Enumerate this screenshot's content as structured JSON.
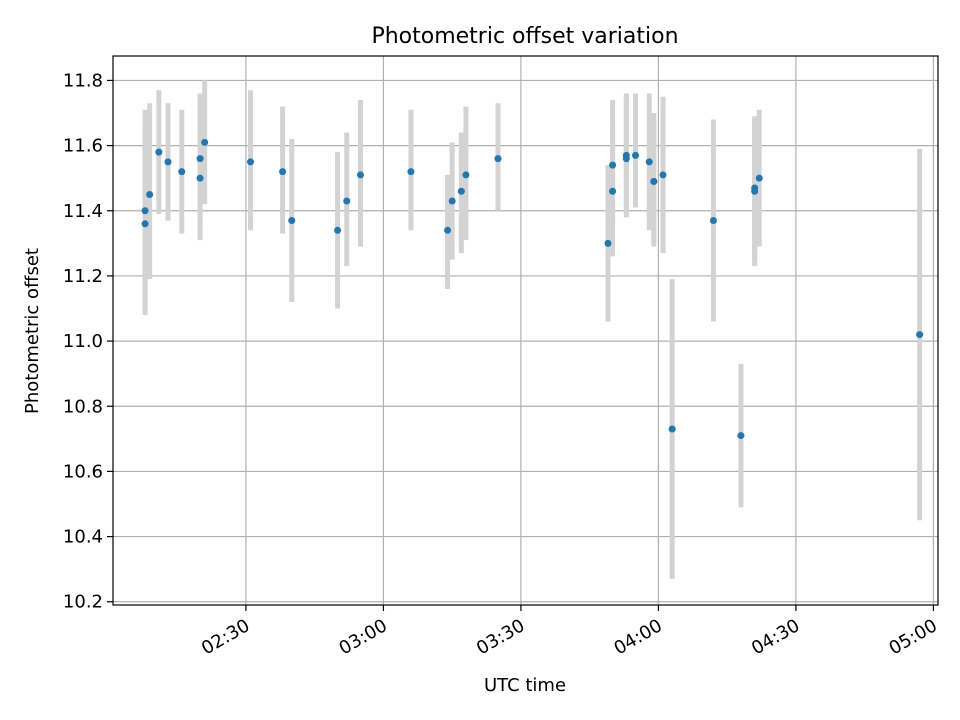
{
  "chart_data": {
    "type": "scatter",
    "title": "Photometric offset variation",
    "xlabel": "UTC time",
    "ylabel": "Photometric offset",
    "xlim": [
      "02:01",
      "05:01"
    ],
    "ylim": [
      10.19,
      11.875
    ],
    "xticks": [
      "02:30",
      "03:00",
      "03:30",
      "04:00",
      "04:30",
      "05:00"
    ],
    "yticks": [
      10.2,
      10.4,
      10.6,
      10.8,
      11.0,
      11.2,
      11.4,
      11.6,
      11.8
    ],
    "grid": true,
    "colors": {
      "point": "#1f77b4",
      "errorbar": "#d3d3d3",
      "grid": "#b0b0b0"
    },
    "points": [
      {
        "x": "02:08",
        "y": 11.36,
        "lo": 11.08,
        "hi": 11.65
      },
      {
        "x": "02:08",
        "y": 11.4,
        "lo": 11.1,
        "hi": 11.71
      },
      {
        "x": "02:09",
        "y": 11.45,
        "lo": 11.19,
        "hi": 11.73
      },
      {
        "x": "02:11",
        "y": 11.58,
        "lo": 11.39,
        "hi": 11.77
      },
      {
        "x": "02:13",
        "y": 11.55,
        "lo": 11.37,
        "hi": 11.73
      },
      {
        "x": "02:16",
        "y": 11.52,
        "lo": 11.33,
        "hi": 11.71
      },
      {
        "x": "02:20",
        "y": 11.5,
        "lo": 11.31,
        "hi": 11.7
      },
      {
        "x": "02:20",
        "y": 11.56,
        "lo": 11.37,
        "hi": 11.76
      },
      {
        "x": "02:21",
        "y": 11.61,
        "lo": 11.42,
        "hi": 11.8
      },
      {
        "x": "02:31",
        "y": 11.55,
        "lo": 11.34,
        "hi": 11.77
      },
      {
        "x": "02:38",
        "y": 11.52,
        "lo": 11.33,
        "hi": 11.72
      },
      {
        "x": "02:40",
        "y": 11.37,
        "lo": 11.12,
        "hi": 11.62
      },
      {
        "x": "02:50",
        "y": 11.34,
        "lo": 11.1,
        "hi": 11.58
      },
      {
        "x": "02:52",
        "y": 11.43,
        "lo": 11.23,
        "hi": 11.64
      },
      {
        "x": "02:55",
        "y": 11.51,
        "lo": 11.29,
        "hi": 11.74
      },
      {
        "x": "03:06",
        "y": 11.52,
        "lo": 11.34,
        "hi": 11.71
      },
      {
        "x": "03:14",
        "y": 11.34,
        "lo": 11.16,
        "hi": 11.51
      },
      {
        "x": "03:15",
        "y": 11.43,
        "lo": 11.25,
        "hi": 11.61
      },
      {
        "x": "03:17",
        "y": 11.46,
        "lo": 11.27,
        "hi": 11.64
      },
      {
        "x": "03:18",
        "y": 11.51,
        "lo": 11.31,
        "hi": 11.72
      },
      {
        "x": "03:25",
        "y": 11.56,
        "lo": 11.4,
        "hi": 11.73
      },
      {
        "x": "03:49",
        "y": 11.3,
        "lo": 11.06,
        "hi": 11.54
      },
      {
        "x": "03:50",
        "y": 11.46,
        "lo": 11.26,
        "hi": 11.67
      },
      {
        "x": "03:50",
        "y": 11.54,
        "lo": 11.35,
        "hi": 11.74
      },
      {
        "x": "03:53",
        "y": 11.57,
        "lo": 11.39,
        "hi": 11.76
      },
      {
        "x": "03:53",
        "y": 11.56,
        "lo": 11.38,
        "hi": 11.75
      },
      {
        "x": "03:55",
        "y": 11.57,
        "lo": 11.41,
        "hi": 11.76
      },
      {
        "x": "03:58",
        "y": 11.55,
        "lo": 11.34,
        "hi": 11.76
      },
      {
        "x": "03:59",
        "y": 11.49,
        "lo": 11.29,
        "hi": 11.7
      },
      {
        "x": "03:59",
        "y": 11.49,
        "lo": 11.3,
        "hi": 11.68
      },
      {
        "x": "04:01",
        "y": 11.51,
        "lo": 11.27,
        "hi": 11.75
      },
      {
        "x": "04:03",
        "y": 10.73,
        "lo": 10.27,
        "hi": 11.19
      },
      {
        "x": "04:12",
        "y": 11.37,
        "lo": 11.06,
        "hi": 11.68
      },
      {
        "x": "04:18",
        "y": 10.71,
        "lo": 10.49,
        "hi": 10.93
      },
      {
        "x": "04:21",
        "y": 11.46,
        "lo": 11.23,
        "hi": 11.68
      },
      {
        "x": "04:21",
        "y": 11.47,
        "lo": 11.25,
        "hi": 11.69
      },
      {
        "x": "04:22",
        "y": 11.5,
        "lo": 11.29,
        "hi": 11.71
      },
      {
        "x": "04:57",
        "y": 11.02,
        "lo": 10.45,
        "hi": 11.59
      }
    ]
  }
}
